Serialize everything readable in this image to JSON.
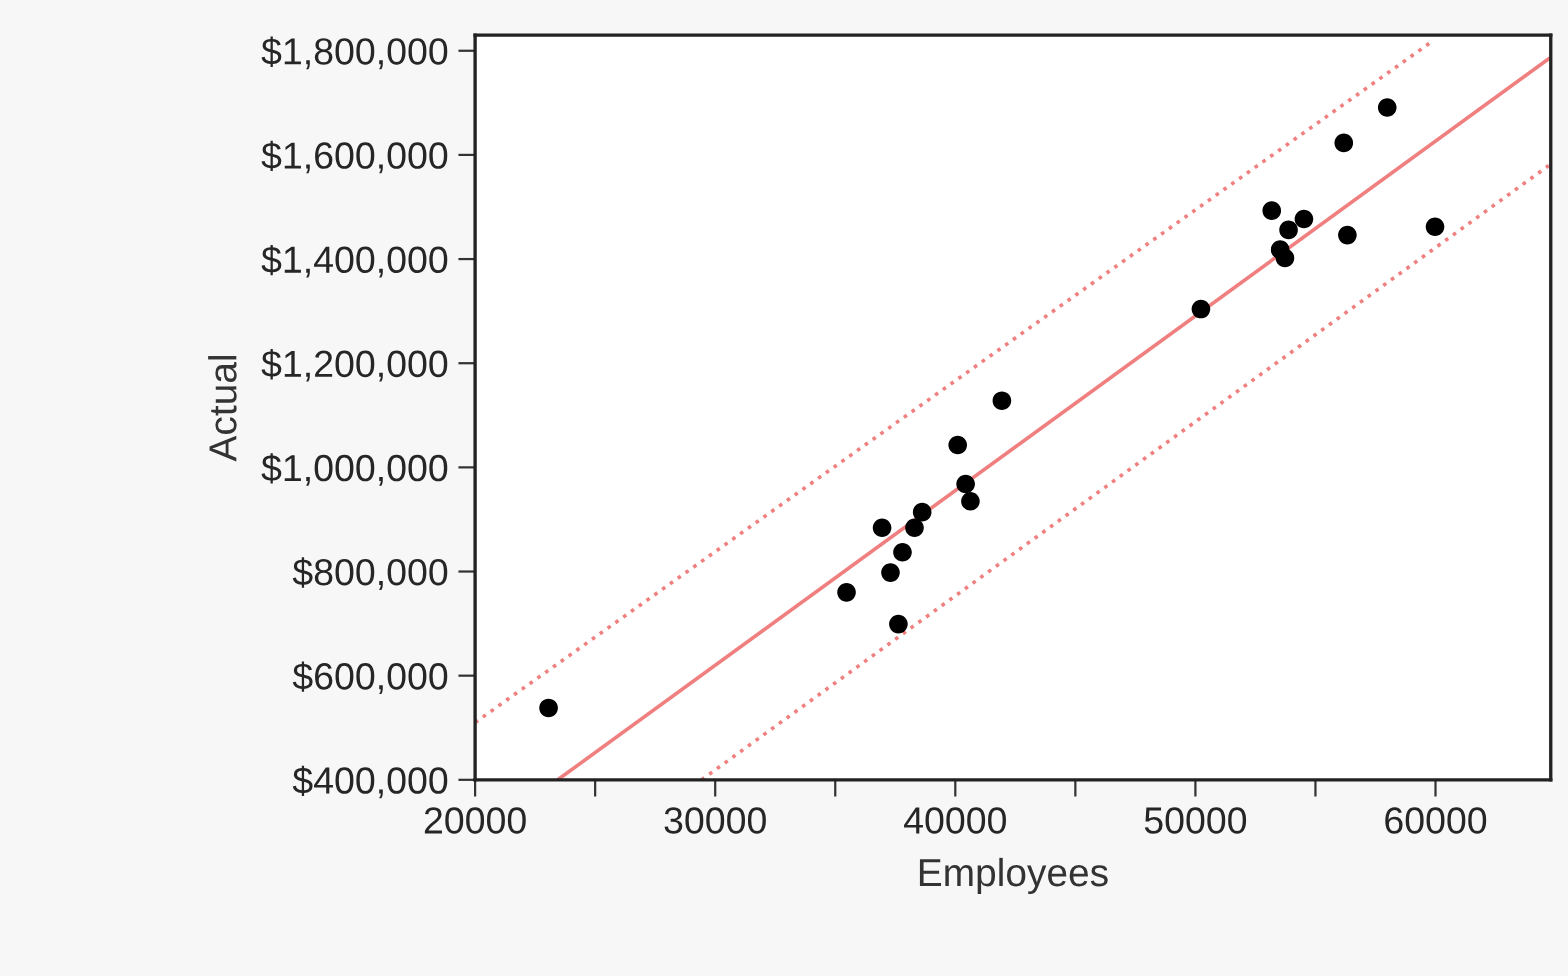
{
  "chart_data": {
    "type": "scatter",
    "xlabel": "Employees",
    "ylabel": "Actual",
    "xlim": [
      20000,
      64800
    ],
    "ylim": [
      400000,
      1830000
    ],
    "xticks": [
      20000,
      {
        "value": 25000,
        "label": null
      },
      30000,
      {
        "value": 35000,
        "label": null
      },
      40000,
      {
        "value": 45000,
        "label": null
      },
      50000,
      {
        "value": 55000,
        "label": null
      },
      60000
    ],
    "yticks": [
      {
        "value": 400000,
        "label": "$400,000"
      },
      {
        "value": 600000,
        "label": "$600,000"
      },
      {
        "value": 800000,
        "label": "$800,000"
      },
      {
        "value": 1000000,
        "label": "$1,000,000"
      },
      {
        "value": 1200000,
        "label": "$1,200,000"
      },
      {
        "value": 1400000,
        "label": "$1,400,000"
      },
      {
        "value": 1600000,
        "label": "$1,600,000"
      },
      {
        "value": 1800000,
        "label": "$1,800,000"
      }
    ],
    "grid": false,
    "legend": false,
    "series": [
      {
        "type": "line",
        "color": "#f08080",
        "line_style": "dotted",
        "x": [
          20000,
          59860
        ],
        "values": [
          510000,
          1818000
        ]
      },
      {
        "type": "line",
        "color": "#f08080",
        "line_style": "solid",
        "x": [
          23440,
          64730
        ],
        "values": [
          400000,
          1785000
        ]
      },
      {
        "type": "line",
        "color": "#f08080",
        "line_style": "dotted",
        "x": [
          29430,
          64730
        ],
        "values": [
          400000,
          1580000
        ]
      },
      {
        "color": "#000000",
        "marker": "circle",
        "x": [
          23060,
          35470,
          36950,
          37300,
          37630,
          37800,
          38300,
          38620,
          40100,
          40430,
          40630,
          41940,
          50230,
          53180,
          53530,
          53730,
          53880,
          54520,
          56180,
          56330,
          57990,
          59980
        ],
        "values": [
          538000,
          760000,
          884000,
          798000,
          699000,
          837000,
          884000,
          914000,
          1043000,
          968000,
          935000,
          1128000,
          1304000,
          1493000,
          1418000,
          1402000,
          1456000,
          1477000,
          1623000,
          1446000,
          1691000,
          1462000
        ]
      }
    ]
  }
}
